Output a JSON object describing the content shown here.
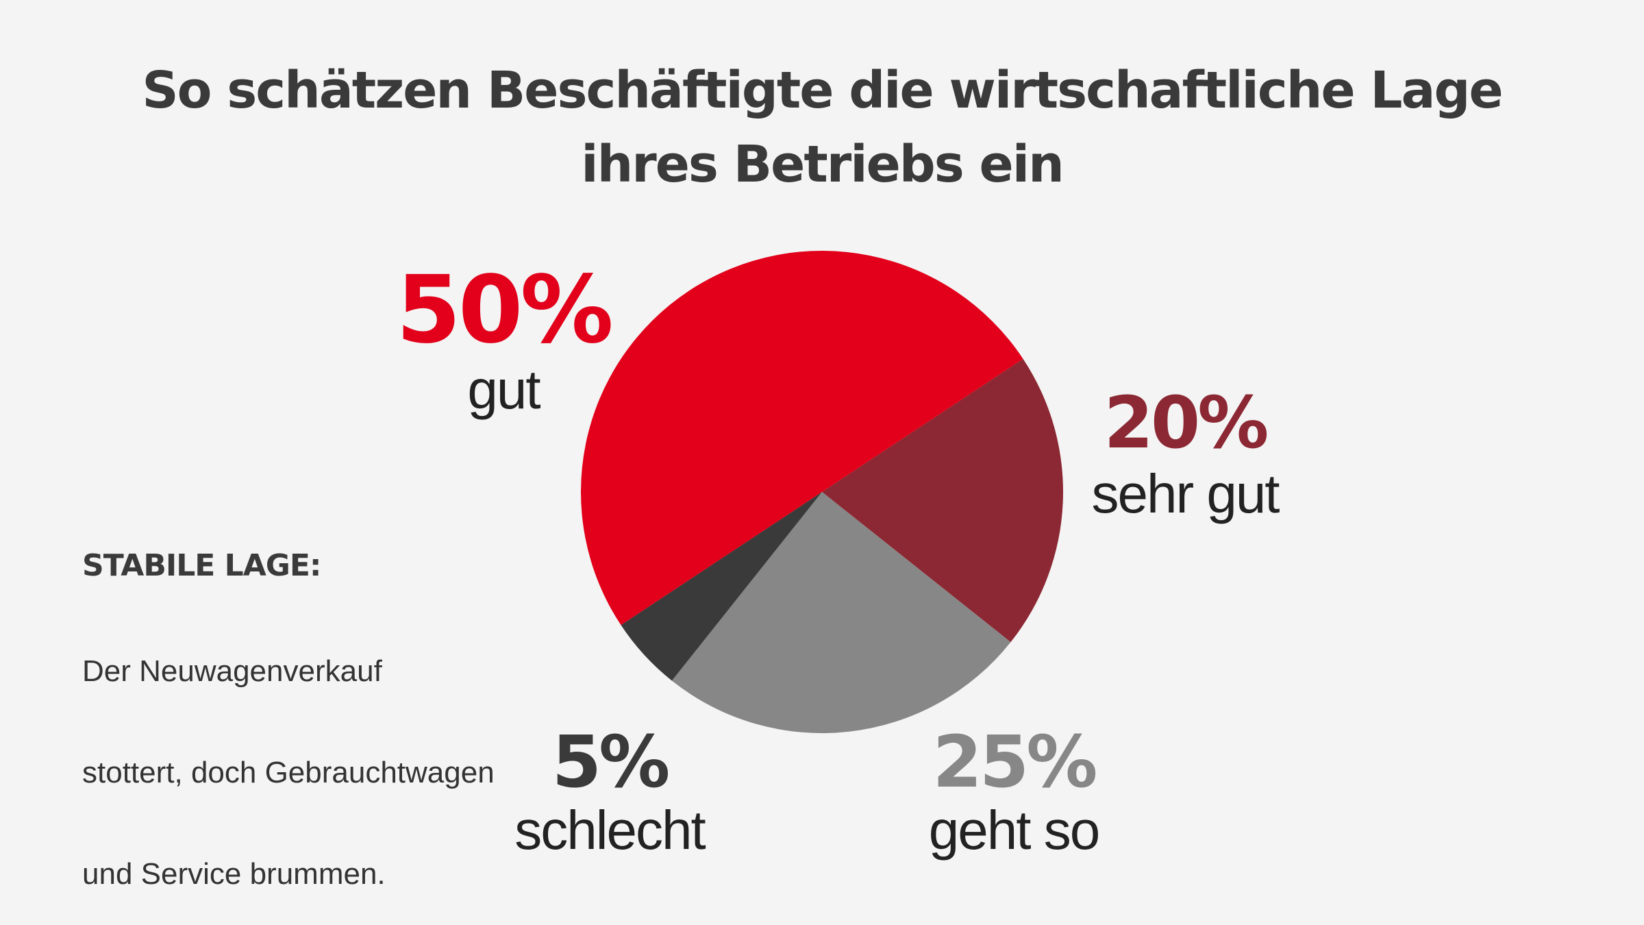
{
  "chart_data": {
    "type": "pie",
    "title": "So schätzen Beschäftigte die wirtschaftliche Lage ihres Betriebs ein",
    "title_lines": [
      "So schätzen Beschäftigte die wirtschaftliche Lage",
      "ihres Betriebs ein"
    ],
    "slices": [
      {
        "label": "sehr gut",
        "value": 20,
        "display": "20%",
        "color": "#8c2833"
      },
      {
        "label": "geht so",
        "value": 25,
        "display": "25%",
        "color": "#878787"
      },
      {
        "label": "schlecht",
        "value": 5,
        "display": "5%",
        "color": "#3a3a3a"
      },
      {
        "label": "gut",
        "value": 50,
        "display": "50%",
        "color": "#e2001a"
      }
    ],
    "legend": "none"
  },
  "note": {
    "heading": "STABILE LAGE:",
    "lines": [
      "Der Neuwagenverkauf",
      "stottert, doch Gebrauchtwagen",
      "und Service brummen."
    ]
  }
}
